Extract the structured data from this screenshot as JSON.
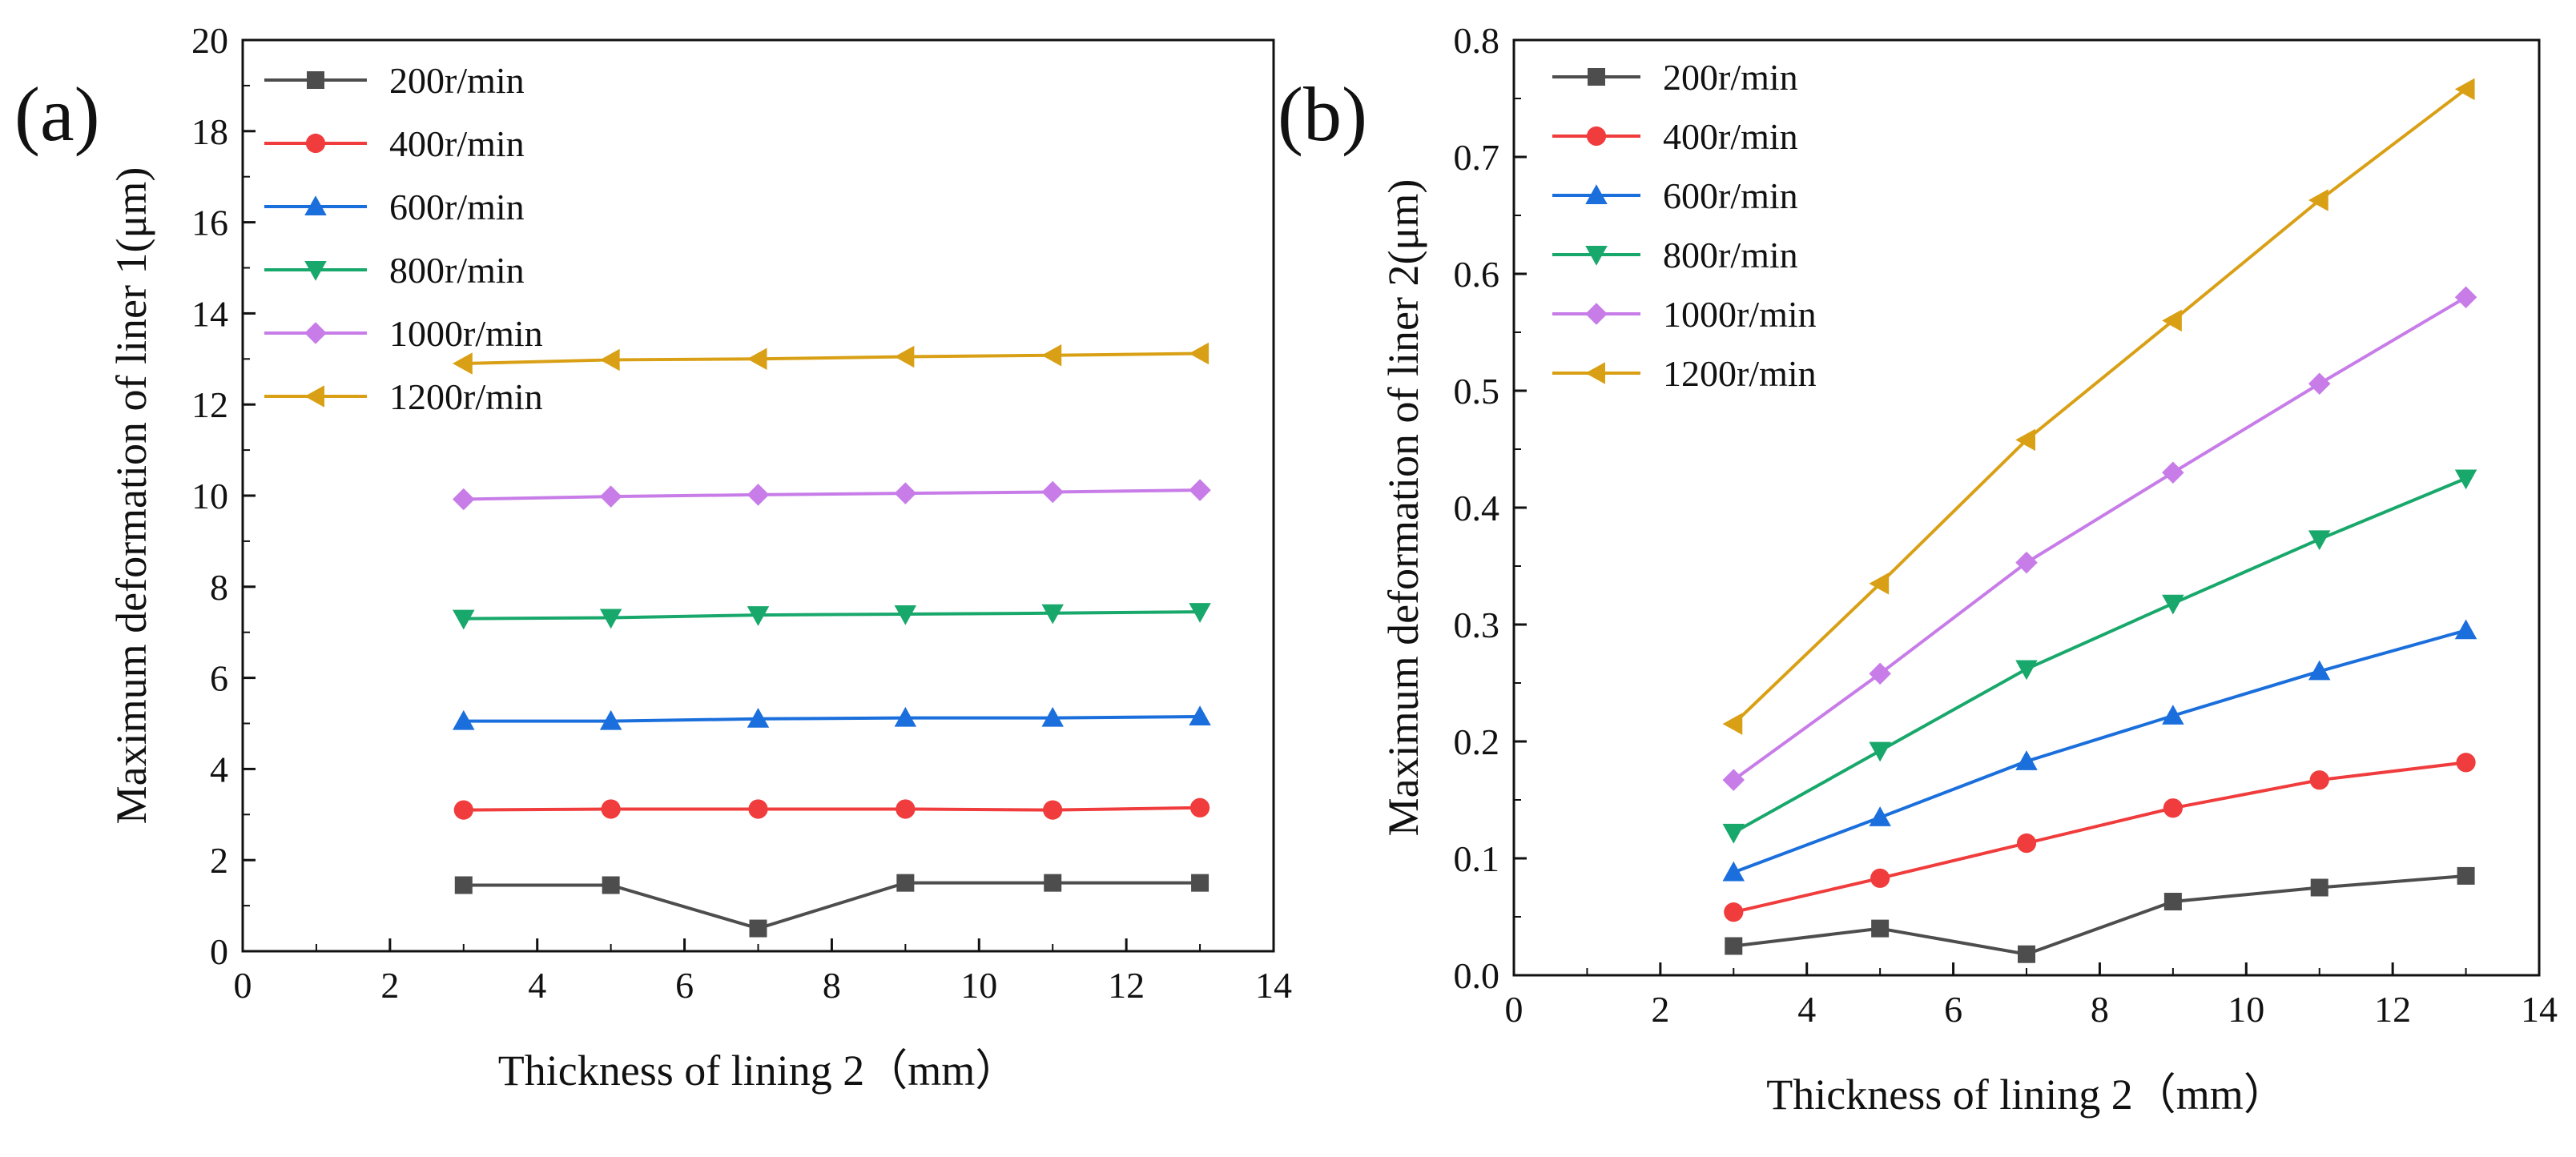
{
  "figure": {
    "panels": [
      "(a)",
      "(b)"
    ]
  },
  "chart_data": [
    {
      "type": "line",
      "panel_label": "(a)",
      "title": "",
      "xlabel": "Thickness of lining 2（mm）",
      "ylabel": "Maximum deformation of liner 1(μm)",
      "xlim": [
        0,
        14
      ],
      "ylim": [
        0,
        20
      ],
      "xticks": [
        "0",
        "2",
        "4",
        "6",
        "8",
        "10",
        "12",
        "14"
      ],
      "yticks": [
        "0",
        "2",
        "4",
        "6",
        "8",
        "10",
        "12",
        "14",
        "16",
        "18",
        "20"
      ],
      "legend_position": "top-left",
      "x": [
        3,
        5,
        7,
        9,
        11,
        13
      ],
      "series": [
        {
          "name": "200r/min",
          "color": "#4d4d4d",
          "marker": "square",
          "values": [
            1.45,
            1.45,
            0.5,
            1.5,
            1.5,
            1.5
          ]
        },
        {
          "name": "400r/min",
          "color": "#f03c3c",
          "marker": "circle",
          "values": [
            3.1,
            3.12,
            3.12,
            3.12,
            3.1,
            3.15
          ]
        },
        {
          "name": "600r/min",
          "color": "#1a6fdc",
          "marker": "triangle-up",
          "values": [
            5.05,
            5.05,
            5.1,
            5.12,
            5.12,
            5.15
          ]
        },
        {
          "name": "800r/min",
          "color": "#18a86b",
          "marker": "triangle-down",
          "values": [
            7.3,
            7.32,
            7.38,
            7.4,
            7.42,
            7.45
          ]
        },
        {
          "name": "1000r/min",
          "color": "#c77ce8",
          "marker": "diamond",
          "values": [
            9.92,
            9.98,
            10.02,
            10.05,
            10.08,
            10.12
          ]
        },
        {
          "name": "1200r/min",
          "color": "#d9a015",
          "marker": "triangle-left",
          "values": [
            12.9,
            12.98,
            13.0,
            13.05,
            13.08,
            13.12
          ]
        }
      ]
    },
    {
      "type": "line",
      "panel_label": "(b)",
      "title": "",
      "xlabel": "Thickness of lining 2（mm）",
      "ylabel": "Maximum deformation of liner 2(μm)",
      "xlim": [
        0,
        14
      ],
      "ylim": [
        0,
        0.8
      ],
      "xticks": [
        "0",
        "2",
        "4",
        "6",
        "8",
        "10",
        "12",
        "14"
      ],
      "yticks": [
        "0.0",
        "0.1",
        "0.2",
        "0.3",
        "0.4",
        "0.5",
        "0.6",
        "0.7",
        "0.8"
      ],
      "legend_position": "top-left",
      "x": [
        3,
        5,
        7,
        9,
        11,
        13
      ],
      "series": [
        {
          "name": "200r/min",
          "color": "#4d4d4d",
          "marker": "square",
          "values": [
            0.025,
            0.04,
            0.018,
            0.063,
            0.075,
            0.085
          ]
        },
        {
          "name": "400r/min",
          "color": "#f03c3c",
          "marker": "circle",
          "values": [
            0.054,
            0.083,
            0.113,
            0.143,
            0.167,
            0.182
          ]
        },
        {
          "name": "600r/min",
          "color": "#1a6fdc",
          "marker": "triangle-up",
          "values": [
            0.088,
            0.135,
            0.183,
            0.222,
            0.26,
            0.295
          ]
        },
        {
          "name": "800r/min",
          "color": "#18a86b",
          "marker": "triangle-down",
          "values": [
            0.122,
            0.192,
            0.262,
            0.318,
            0.373,
            0.425
          ]
        },
        {
          "name": "1000r/min",
          "color": "#c77ce8",
          "marker": "diamond",
          "values": [
            0.167,
            0.258,
            0.353,
            0.43,
            0.506,
            0.58
          ]
        },
        {
          "name": "1200r/min",
          "color": "#d9a015",
          "marker": "triangle-left",
          "values": [
            0.215,
            0.335,
            0.458,
            0.56,
            0.663,
            0.758
          ]
        }
      ]
    }
  ]
}
